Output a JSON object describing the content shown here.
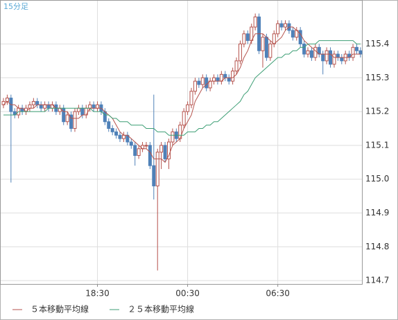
{
  "chart_data": {
    "type": "candlestick",
    "label": "15分足",
    "categories": [
      null,
      null,
      null,
      null,
      null,
      null,
      null,
      null,
      null,
      null,
      null,
      null,
      null,
      null,
      null,
      null,
      null,
      null,
      null,
      null,
      null,
      null,
      null,
      null,
      null,
      "18:30",
      null,
      null,
      null,
      null,
      null,
      null,
      null,
      null,
      null,
      null,
      null,
      null,
      null,
      null,
      null,
      null,
      null,
      null,
      null,
      null,
      null,
      null,
      null,
      "00:30",
      null,
      null,
      null,
      null,
      null,
      null,
      null,
      null,
      null,
      null,
      null,
      null,
      null,
      null,
      null,
      null,
      null,
      null,
      null,
      null,
      null,
      null,
      null,
      "06:30",
      null,
      null,
      null,
      null,
      null,
      null,
      null,
      null,
      null,
      null,
      null,
      null,
      null,
      null,
      null,
      null,
      null,
      null,
      null,
      null,
      null,
      null
    ],
    "open": [
      115.22,
      115.23,
      115.24,
      115.2,
      115.19,
      115.21,
      115.2,
      115.21,
      115.22,
      115.23,
      115.22,
      115.21,
      115.22,
      115.21,
      115.22,
      115.2,
      115.21,
      115.17,
      115.19,
      115.15,
      115.2,
      115.21,
      115.19,
      115.21,
      115.22,
      115.21,
      115.22,
      115.2,
      115.17,
      115.15,
      115.14,
      115.13,
      115.12,
      115.13,
      115.11,
      115.1,
      115.07,
      115.09,
      115.1,
      115.1,
      115.04,
      114.98,
      115.08,
      115.1,
      115.06,
      115.11,
      115.14,
      115.12,
      115.16,
      115.2,
      115.22,
      115.26,
      115.29,
      115.28,
      115.3,
      115.27,
      115.29,
      115.3,
      115.29,
      115.31,
      115.3,
      115.29,
      115.32,
      115.35,
      115.4,
      115.43,
      115.41,
      115.45,
      115.48,
      115.38,
      115.42,
      115.36,
      115.4,
      115.43,
      115.46,
      115.45,
      115.46,
      115.44,
      115.42,
      115.44,
      115.4,
      115.37,
      115.38,
      115.36,
      115.39,
      115.37,
      115.35,
      115.38,
      115.34,
      115.37,
      115.36,
      115.35,
      115.37,
      115.36,
      115.39,
      115.38
    ],
    "high": [
      115.24,
      115.25,
      115.25,
      115.21,
      115.22,
      115.22,
      115.22,
      115.23,
      115.24,
      115.24,
      115.23,
      115.23,
      115.23,
      115.23,
      115.23,
      115.22,
      115.22,
      115.2,
      115.2,
      115.21,
      115.22,
      115.22,
      115.22,
      115.23,
      115.23,
      115.23,
      115.23,
      115.21,
      115.18,
      115.16,
      115.15,
      115.14,
      115.14,
      115.14,
      115.12,
      115.11,
      115.1,
      115.11,
      115.11,
      115.11,
      115.25,
      115.09,
      115.11,
      115.11,
      115.12,
      115.15,
      115.15,
      115.17,
      115.21,
      115.23,
      115.27,
      115.3,
      115.3,
      115.31,
      115.31,
      115.3,
      115.31,
      115.31,
      115.32,
      115.32,
      115.31,
      115.33,
      115.36,
      115.41,
      115.44,
      115.44,
      115.46,
      115.49,
      115.49,
      115.43,
      115.43,
      115.41,
      115.44,
      115.47,
      115.47,
      115.47,
      115.47,
      115.45,
      115.45,
      115.45,
      115.41,
      115.39,
      115.39,
      115.4,
      115.4,
      115.38,
      115.39,
      115.39,
      115.38,
      115.38,
      115.37,
      115.38,
      115.38,
      115.4,
      115.4,
      115.39
    ],
    "low": [
      115.21,
      115.22,
      114.99,
      115.18,
      115.18,
      115.19,
      115.19,
      115.2,
      115.21,
      115.21,
      115.2,
      115.2,
      115.2,
      115.2,
      115.19,
      115.19,
      115.16,
      115.16,
      115.14,
      115.14,
      115.19,
      115.18,
      115.18,
      115.2,
      115.2,
      115.2,
      115.19,
      115.16,
      115.14,
      115.13,
      115.12,
      115.11,
      115.11,
      115.1,
      115.09,
      115.04,
      115.06,
      115.08,
      115.09,
      115.03,
      114.94,
      114.73,
      115.03,
      115.05,
      115.03,
      115.1,
      115.11,
      115.11,
      115.15,
      115.19,
      115.21,
      115.25,
      115.27,
      115.27,
      115.26,
      115.26,
      115.28,
      115.28,
      115.28,
      115.29,
      115.28,
      115.28,
      115.31,
      115.34,
      115.39,
      115.4,
      115.4,
      115.44,
      115.37,
      115.33,
      115.35,
      115.35,
      115.39,
      115.42,
      115.44,
      115.44,
      115.43,
      115.41,
      115.41,
      115.39,
      115.36,
      115.36,
      115.35,
      115.35,
      115.36,
      115.31,
      115.34,
      115.33,
      115.33,
      115.35,
      115.34,
      115.34,
      115.35,
      115.35,
      115.37,
      115.36
    ],
    "close": [
      115.23,
      115.24,
      115.2,
      115.19,
      115.21,
      115.2,
      115.21,
      115.22,
      115.23,
      115.22,
      115.21,
      115.22,
      115.21,
      115.22,
      115.2,
      115.21,
      115.17,
      115.19,
      115.15,
      115.2,
      115.21,
      115.19,
      115.21,
      115.22,
      115.21,
      115.22,
      115.2,
      115.17,
      115.15,
      115.14,
      115.13,
      115.12,
      115.13,
      115.11,
      115.1,
      115.07,
      115.09,
      115.1,
      115.1,
      115.04,
      114.98,
      115.08,
      115.1,
      115.06,
      115.11,
      115.14,
      115.12,
      115.16,
      115.2,
      115.22,
      115.26,
      115.29,
      115.28,
      115.3,
      115.27,
      115.29,
      115.3,
      115.29,
      115.31,
      115.3,
      115.29,
      115.32,
      115.35,
      115.4,
      115.43,
      115.41,
      115.45,
      115.48,
      115.38,
      115.42,
      115.36,
      115.4,
      115.43,
      115.46,
      115.45,
      115.46,
      115.44,
      115.42,
      115.44,
      115.4,
      115.37,
      115.38,
      115.36,
      115.39,
      115.37,
      115.35,
      115.38,
      115.34,
      115.37,
      115.36,
      115.35,
      115.37,
      115.36,
      115.39,
      115.38,
      115.37
    ],
    "up_color": "#b5524c",
    "down_color": "#4f81b8",
    "series": [
      {
        "name": "５本移動平均線",
        "color": "#b5524c",
        "values": [
          115.22,
          115.23,
          115.22,
          115.22,
          115.21,
          115.21,
          115.2,
          115.21,
          115.21,
          115.22,
          115.22,
          115.22,
          115.22,
          115.22,
          115.21,
          115.21,
          115.2,
          115.2,
          115.18,
          115.18,
          115.18,
          115.19,
          115.19,
          115.21,
          115.21,
          115.21,
          115.21,
          115.2,
          115.19,
          115.18,
          115.16,
          115.14,
          115.13,
          115.13,
          115.12,
          115.11,
          115.1,
          115.09,
          115.09,
          115.08,
          115.06,
          115.06,
          115.06,
          115.05,
          115.07,
          115.1,
          115.11,
          115.12,
          115.15,
          115.17,
          115.19,
          115.23,
          115.25,
          115.27,
          115.28,
          115.29,
          115.29,
          115.29,
          115.29,
          115.3,
          115.3,
          115.3,
          115.31,
          115.33,
          115.36,
          115.38,
          115.41,
          115.43,
          115.43,
          115.43,
          115.42,
          115.41,
          115.4,
          115.41,
          115.42,
          115.44,
          115.45,
          115.45,
          115.44,
          115.43,
          115.41,
          115.4,
          115.39,
          115.38,
          115.37,
          115.37,
          115.37,
          115.37,
          115.36,
          115.36,
          115.36,
          115.36,
          115.36,
          115.37,
          115.37,
          115.37
        ]
      },
      {
        "name": "２５本移動平均線",
        "color": "#3c9e74",
        "values": [
          115.19,
          115.19,
          115.19,
          115.19,
          115.2,
          115.2,
          115.2,
          115.2,
          115.2,
          115.2,
          115.2,
          115.2,
          115.21,
          115.21,
          115.21,
          115.21,
          115.21,
          115.21,
          115.21,
          115.21,
          115.21,
          115.21,
          115.21,
          115.21,
          115.2,
          115.2,
          115.2,
          115.19,
          115.19,
          115.18,
          115.18,
          115.17,
          115.17,
          115.17,
          115.16,
          115.16,
          115.16,
          115.16,
          115.15,
          115.15,
          115.15,
          115.14,
          115.14,
          115.14,
          115.13,
          115.13,
          115.13,
          115.13,
          115.13,
          115.14,
          115.14,
          115.14,
          115.15,
          115.15,
          115.16,
          115.16,
          115.17,
          115.17,
          115.18,
          115.19,
          115.2,
          115.21,
          115.22,
          115.23,
          115.25,
          115.26,
          115.28,
          115.3,
          115.31,
          115.32,
          115.33,
          115.34,
          115.35,
          115.36,
          115.36,
          115.37,
          115.37,
          115.38,
          115.38,
          115.39,
          115.39,
          115.4,
          115.4,
          115.4,
          115.41,
          115.41,
          115.41,
          115.41,
          115.41,
          115.41,
          115.41,
          115.41,
          115.41,
          115.41,
          115.4,
          115.4
        ]
      }
    ],
    "ylim": [
      114.69,
      115.53
    ],
    "yticks": [
      114.7,
      114.8,
      114.9,
      {
        "value": 115,
        "label": "115.0"
      },
      115.1,
      115.2,
      115.3,
      115.4
    ],
    "grid": true
  }
}
